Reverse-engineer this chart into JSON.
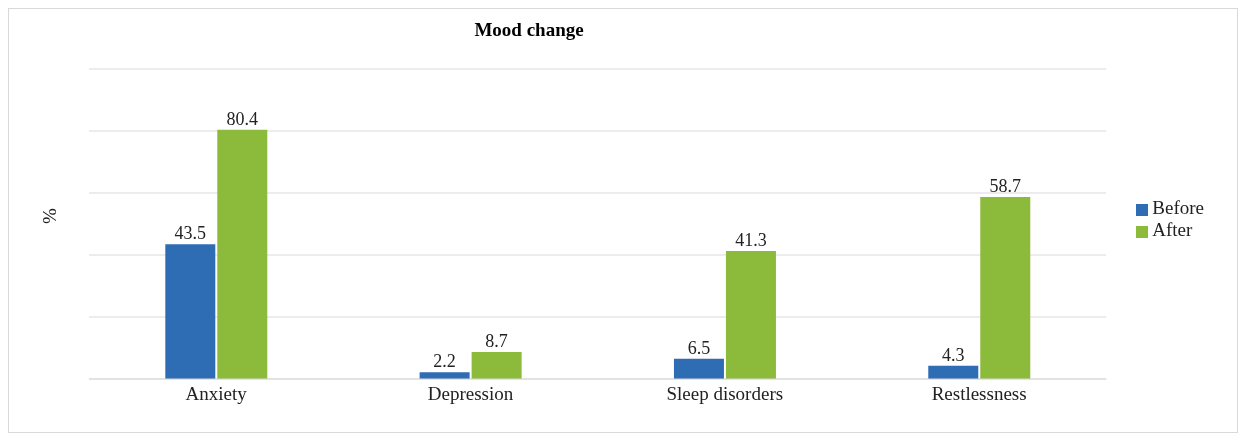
{
  "chart_data": {
    "type": "bar",
    "title": "Mood change",
    "ylabel": "%",
    "categories": [
      "Anxiety",
      "Depression",
      "Sleep disorders",
      "Restlessness"
    ],
    "series": [
      {
        "name": "Before",
        "color": "#2e6db4",
        "values": [
          43.5,
          2.2,
          6.5,
          4.3
        ]
      },
      {
        "name": "After",
        "color": "#8cba3a",
        "values": [
          80.4,
          8.7,
          41.3,
          58.7
        ]
      }
    ],
    "ylim": [
      0,
      100
    ],
    "yticks": [
      {
        "value": 0,
        "label": null
      },
      {
        "value": 20,
        "label": null
      },
      {
        "value": 40,
        "label": null
      },
      {
        "value": 60,
        "label": null
      },
      {
        "value": 80,
        "label": null
      },
      {
        "value": 100,
        "label": null
      }
    ],
    "grid": "y",
    "legend": "right",
    "data_labels": true
  }
}
